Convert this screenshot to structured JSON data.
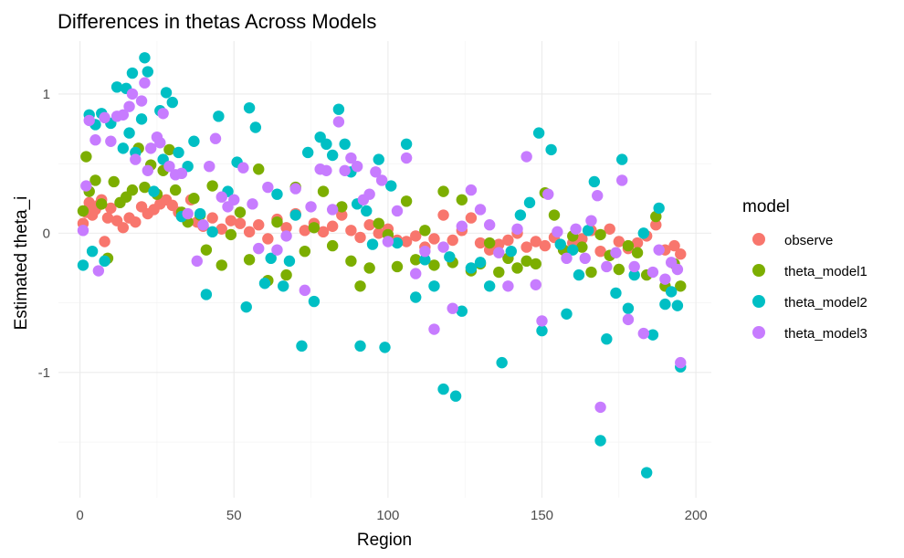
{
  "chart_data": {
    "type": "scatter",
    "title": "Differences in thetas Across Models",
    "xlabel": "Region",
    "ylabel": "Estimated theta_i",
    "xlim": [
      -7,
      205
    ],
    "ylim": [
      -1.9,
      1.38
    ],
    "x_ticks": [
      0,
      50,
      100,
      150,
      200
    ],
    "y_ticks": [
      -1,
      0,
      1
    ],
    "grid": true,
    "legend": {
      "title": "model",
      "placement": "right"
    },
    "series": [
      {
        "name": "observe",
        "color": "#F8766D",
        "x": [
          1,
          2,
          3,
          4,
          5,
          6,
          7,
          8,
          9,
          10,
          12,
          14,
          16,
          18,
          20,
          22,
          24,
          26,
          28,
          30,
          32,
          34,
          36,
          38,
          40,
          43,
          46,
          49,
          52,
          55,
          58,
          61,
          64,
          67,
          70,
          73,
          76,
          79,
          82,
          85,
          88,
          91,
          94,
          97,
          100,
          103,
          106,
          109,
          112,
          115,
          118,
          121,
          124,
          127,
          130,
          133,
          136,
          139,
          142,
          145,
          148,
          151,
          154,
          157,
          160,
          163,
          166,
          169,
          172,
          175,
          178,
          181,
          184,
          187,
          190,
          193,
          195
        ],
        "y": [
          0.07,
          0.15,
          0.22,
          0.13,
          0.17,
          0.2,
          0.24,
          -0.06,
          0.11,
          0.18,
          0.09,
          0.04,
          0.11,
          0.08,
          0.19,
          0.14,
          0.17,
          0.21,
          0.24,
          0.2,
          0.15,
          0.12,
          0.24,
          0.08,
          0.05,
          0.11,
          0.03,
          0.09,
          0.07,
          0.01,
          0.06,
          -0.04,
          0.1,
          0.04,
          0.14,
          0.02,
          0.07,
          0.01,
          0.05,
          0.13,
          0.02,
          -0.03,
          0.06,
          0.0,
          0.03,
          -0.05,
          -0.06,
          -0.02,
          -0.1,
          -0.04,
          0.13,
          -0.05,
          0.02,
          0.11,
          -0.07,
          -0.12,
          -0.08,
          -0.05,
          0.0,
          -0.1,
          -0.06,
          -0.09,
          -0.03,
          -0.12,
          -0.07,
          -0.04,
          0.02,
          -0.13,
          0.03,
          -0.06,
          -0.11,
          -0.07,
          -0.02,
          0.06,
          -0.12,
          -0.09,
          -0.15
        ]
      },
      {
        "name": "theta_model1",
        "color": "#7CAE00",
        "x": [
          1,
          2,
          3,
          5,
          7,
          9,
          11,
          13,
          15,
          17,
          19,
          21,
          23,
          25,
          27,
          29,
          31,
          33,
          35,
          37,
          39,
          41,
          43,
          46,
          49,
          52,
          55,
          58,
          61,
          64,
          67,
          70,
          73,
          76,
          79,
          82,
          85,
          88,
          91,
          94,
          97,
          100,
          103,
          106,
          109,
          112,
          115,
          118,
          121,
          124,
          127,
          130,
          133,
          136,
          139,
          142,
          145,
          148,
          151,
          154,
          157,
          160,
          163,
          166,
          169,
          172,
          175,
          178,
          181,
          184,
          187,
          190,
          193,
          195
        ],
        "y": [
          0.16,
          0.55,
          0.3,
          0.38,
          0.21,
          -0.18,
          0.37,
          0.22,
          0.26,
          0.31,
          0.61,
          0.33,
          0.49,
          0.28,
          0.45,
          0.6,
          0.31,
          0.15,
          0.08,
          0.25,
          0.13,
          -0.12,
          0.34,
          -0.23,
          -0.01,
          0.15,
          -0.19,
          0.46,
          -0.34,
          0.08,
          -0.3,
          0.33,
          -0.13,
          0.04,
          0.3,
          -0.09,
          0.19,
          -0.2,
          -0.38,
          -0.25,
          0.07,
          -0.01,
          -0.24,
          0.23,
          -0.19,
          0.02,
          -0.23,
          0.3,
          -0.21,
          0.24,
          -0.27,
          -0.22,
          -0.07,
          -0.28,
          -0.18,
          -0.25,
          -0.2,
          -0.22,
          0.29,
          0.13,
          -0.12,
          -0.02,
          -0.1,
          -0.28,
          -0.01,
          -0.16,
          -0.26,
          -0.09,
          -0.14,
          -0.3,
          0.12,
          -0.38,
          -0.22,
          -0.38
        ]
      },
      {
        "name": "theta_model2",
        "color": "#00BFC4",
        "x": [
          1,
          3,
          4,
          5,
          7,
          8,
          10,
          12,
          14,
          15,
          16,
          17,
          18,
          20,
          21,
          22,
          24,
          26,
          27,
          28,
          30,
          32,
          33,
          35,
          37,
          39,
          41,
          43,
          45,
          48,
          51,
          54,
          55,
          57,
          60,
          62,
          64,
          66,
          68,
          70,
          72,
          74,
          76,
          78,
          80,
          82,
          84,
          86,
          88,
          90,
          91,
          93,
          95,
          97,
          99,
          101,
          103,
          106,
          109,
          112,
          115,
          118,
          120,
          122,
          124,
          127,
          130,
          133,
          137,
          140,
          143,
          146,
          149,
          150,
          153,
          156,
          158,
          160,
          162,
          165,
          167,
          169,
          171,
          174,
          176,
          178,
          180,
          183,
          184,
          186,
          188,
          190,
          192,
          194,
          195
        ],
        "y": [
          -0.23,
          0.85,
          -0.13,
          0.78,
          0.86,
          -0.2,
          0.79,
          1.05,
          0.61,
          1.04,
          0.72,
          1.15,
          0.58,
          0.82,
          1.26,
          1.16,
          0.3,
          0.88,
          0.53,
          1.01,
          0.94,
          0.58,
          0.12,
          0.48,
          0.66,
          0.14,
          -0.44,
          0.01,
          0.84,
          0.3,
          0.51,
          -0.53,
          0.9,
          0.76,
          -0.36,
          -0.18,
          0.28,
          -0.38,
          -0.2,
          0.13,
          -0.81,
          0.58,
          -0.49,
          0.69,
          0.64,
          0.56,
          0.89,
          0.64,
          0.44,
          0.21,
          -0.81,
          0.16,
          -0.08,
          0.53,
          -0.82,
          0.34,
          -0.07,
          0.64,
          -0.46,
          -0.19,
          -0.38,
          -1.12,
          -0.17,
          -1.17,
          -0.56,
          -0.25,
          -0.21,
          -0.38,
          -0.93,
          -0.13,
          0.13,
          0.22,
          0.72,
          -0.7,
          0.6,
          -0.08,
          -0.58,
          -0.12,
          -0.3,
          0.02,
          0.37,
          -1.49,
          -0.76,
          -0.43,
          0.53,
          -0.54,
          -0.3,
          0.0,
          -1.72,
          -0.73,
          0.18,
          -0.51,
          -0.42,
          -0.52,
          -0.96
        ]
      },
      {
        "name": "theta_model3",
        "color": "#C77CFF",
        "x": [
          1,
          2,
          3,
          5,
          6,
          8,
          10,
          12,
          14,
          16,
          17,
          18,
          20,
          21,
          22,
          23,
          25,
          26,
          27,
          29,
          31,
          33,
          35,
          38,
          40,
          42,
          44,
          46,
          48,
          50,
          53,
          56,
          58,
          61,
          64,
          67,
          70,
          73,
          75,
          78,
          80,
          82,
          84,
          86,
          88,
          90,
          92,
          94,
          96,
          98,
          100,
          103,
          106,
          109,
          112,
          115,
          118,
          121,
          124,
          127,
          130,
          133,
          136,
          139,
          142,
          145,
          148,
          150,
          152,
          155,
          158,
          161,
          164,
          166,
          168,
          169,
          171,
          174,
          176,
          178,
          180,
          183,
          186,
          188,
          190,
          192,
          194,
          195
        ],
        "y": [
          0.02,
          0.34,
          0.81,
          0.67,
          -0.27,
          0.83,
          0.66,
          0.84,
          0.85,
          0.91,
          1.0,
          0.53,
          0.95,
          1.08,
          0.45,
          0.61,
          0.69,
          0.65,
          0.86,
          0.48,
          0.42,
          0.43,
          0.14,
          -0.2,
          0.06,
          0.48,
          0.68,
          0.26,
          0.19,
          0.24,
          0.47,
          0.21,
          -0.11,
          0.33,
          -0.12,
          -0.02,
          0.32,
          -0.41,
          0.19,
          0.46,
          0.45,
          0.17,
          0.8,
          0.45,
          0.54,
          0.48,
          0.24,
          0.28,
          0.44,
          0.38,
          -0.06,
          0.16,
          0.54,
          -0.29,
          -0.13,
          -0.69,
          -0.1,
          -0.54,
          0.05,
          0.31,
          0.17,
          0.06,
          -0.14,
          -0.38,
          0.03,
          0.55,
          -0.37,
          -0.63,
          0.28,
          0.01,
          -0.18,
          0.03,
          -0.18,
          0.09,
          0.27,
          -1.25,
          -0.24,
          -0.14,
          0.38,
          -0.62,
          -0.24,
          -0.72,
          -0.28,
          -0.12,
          -0.33,
          -0.21,
          -0.26,
          -0.93
        ]
      }
    ]
  }
}
